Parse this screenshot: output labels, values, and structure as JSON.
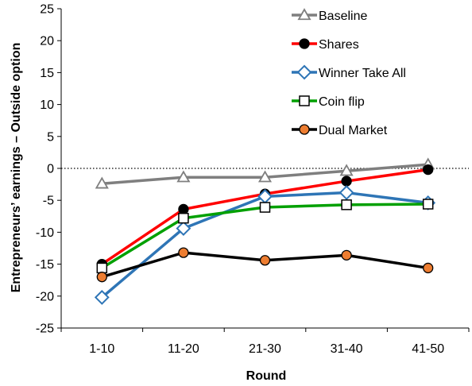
{
  "chart_data": {
    "type": "line",
    "categories": [
      "1-10",
      "11-20",
      "21-30",
      "31-40",
      "41-50"
    ],
    "xlabel": "Round",
    "ylabel": "Entrepreneurs’ earnings – Outside option",
    "ylim": [
      -25,
      25
    ],
    "yticks": [
      25,
      20,
      15,
      10,
      5,
      0,
      -5,
      -10,
      -15,
      -20,
      -25
    ],
    "reference_line": {
      "y": 0,
      "style": "dotted"
    },
    "grid": false,
    "legend_position": "top-right",
    "series": [
      {
        "name": "Baseline",
        "values": [
          -2.4,
          -1.4,
          -1.4,
          -0.4,
          0.6
        ],
        "line_color": "#7f7f7f",
        "marker": "triangle",
        "marker_fill": "#ffffff",
        "marker_stroke": "#7f7f7f"
      },
      {
        "name": "Shares",
        "values": [
          -15.0,
          -6.4,
          -4.0,
          -2.0,
          -0.2
        ],
        "line_color": "#ff0000",
        "marker": "circle",
        "marker_fill": "#000000",
        "marker_stroke": "#000000"
      },
      {
        "name": "Winner Take All",
        "values": [
          -20.2,
          -9.4,
          -4.4,
          -3.8,
          -5.4
        ],
        "line_color": "#2e75b6",
        "marker": "diamond",
        "marker_fill": "#ffffff",
        "marker_stroke": "#2e75b6"
      },
      {
        "name": "Coin flip",
        "values": [
          -15.6,
          -7.8,
          -6.1,
          -5.7,
          -5.6
        ],
        "line_color": "#00a000",
        "marker": "square",
        "marker_fill": "#ffffff",
        "marker_stroke": "#000000"
      },
      {
        "name": "Dual Market",
        "values": [
          -17.0,
          -13.2,
          -14.4,
          -13.6,
          -15.6
        ],
        "line_color": "#000000",
        "marker": "circle",
        "marker_fill": "#ed7d31",
        "marker_stroke": "#000000"
      }
    ]
  }
}
